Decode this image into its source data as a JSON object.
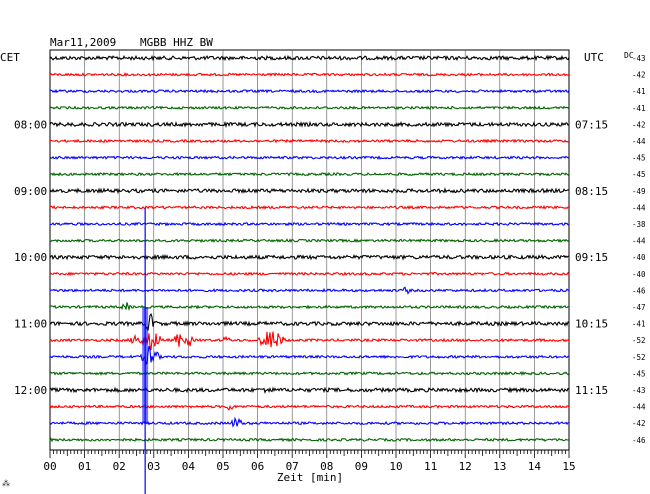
{
  "header": {
    "date": "Mar11,2009",
    "station": "MGBB HHZ BW",
    "left_zone": "CET",
    "right_zone": "UTC",
    "dc_label": "DC"
  },
  "chart_data": {
    "type": "line",
    "title": "Mar11,2009   MGBB HHZ BW",
    "xlabel": "Zeit [min]",
    "xlim": [
      0,
      15
    ],
    "x_ticks": [
      "00",
      "01",
      "02",
      "03",
      "04",
      "05",
      "06",
      "07",
      "08",
      "09",
      "10",
      "11",
      "12",
      "13",
      "14",
      "15"
    ],
    "traces_per_hour": 4,
    "trace_colors": [
      "#000000",
      "#ff0000",
      "#0000ff",
      "#006400"
    ],
    "left_hour_labels": [
      {
        "trace": 4,
        "text": "08:00"
      },
      {
        "trace": 8,
        "text": "09:00"
      },
      {
        "trace": 12,
        "text": "10:00"
      },
      {
        "trace": 16,
        "text": "11:00"
      },
      {
        "trace": 20,
        "text": "12:00"
      }
    ],
    "right_hour_labels": [
      {
        "trace": 4,
        "text": "07:15"
      },
      {
        "trace": 8,
        "text": "08:15"
      },
      {
        "trace": 12,
        "text": "09:15"
      },
      {
        "trace": 16,
        "text": "10:15"
      },
      {
        "trace": 20,
        "text": "11:15"
      }
    ],
    "dc_offsets": [
      "-43",
      "-42",
      "-41",
      "-41",
      "-42",
      "-44",
      "-45",
      "-45",
      "-49",
      "-44",
      "-38",
      "-44",
      "-40",
      "-40",
      "-46",
      "-47",
      "-41",
      "-52",
      "-52",
      "-45",
      "-43",
      "-44",
      "-42",
      "-46"
    ],
    "events": [
      {
        "trace": 15,
        "minute": 2.2,
        "amp": 0.6,
        "width": 0.15
      },
      {
        "trace": 14,
        "minute": 10.3,
        "amp": 0.5,
        "width": 0.12
      },
      {
        "trace": 17,
        "minute": 2.5,
        "amp": 1.0,
        "width": 0.2
      },
      {
        "trace": 17,
        "minute": 2.95,
        "amp": 1.4,
        "width": 0.35
      },
      {
        "trace": 17,
        "minute": 3.7,
        "amp": 1.1,
        "width": 0.15
      },
      {
        "trace": 17,
        "minute": 4.0,
        "amp": 1.0,
        "width": 0.15
      },
      {
        "trace": 17,
        "minute": 5.1,
        "amp": 0.7,
        "width": 0.1
      },
      {
        "trace": 17,
        "minute": 6.4,
        "amp": 1.5,
        "width": 0.45
      },
      {
        "trace": 16,
        "minute": 2.9,
        "amp": 1.3,
        "width": 0.2
      },
      {
        "trace": 18,
        "minute": 2.9,
        "amp": 1.6,
        "width": 0.3
      },
      {
        "trace": 20,
        "minute": 6.3,
        "amp": 0.5,
        "width": 0.15
      },
      {
        "trace": 21,
        "minute": 5.2,
        "amp": 0.6,
        "width": 0.12
      },
      {
        "trace": 22,
        "minute": 5.4,
        "amp": 0.8,
        "width": 0.2
      }
    ],
    "spike": {
      "minute": 2.75,
      "from_trace": 11,
      "to_trace": 23,
      "color": "#0000ff"
    },
    "footer_mark": "⁂"
  }
}
